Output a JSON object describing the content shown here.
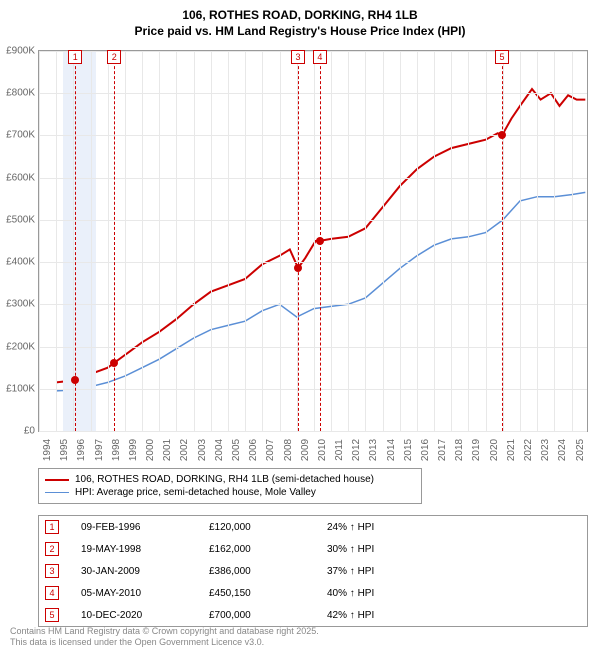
{
  "title_line1": "106, ROTHES ROAD, DORKING, RH4 1LB",
  "title_line2": "Price paid vs. HM Land Registry's House Price Index (HPI)",
  "chart": {
    "type": "line",
    "background_color": "#ffffff",
    "grid_color": "#e8e8e8",
    "border_color": "#999999",
    "x_axis": {
      "min": 1994,
      "max": 2025.9,
      "ticks": [
        1994,
        1995,
        1996,
        1997,
        1998,
        1999,
        2000,
        2001,
        2002,
        2003,
        2004,
        2005,
        2006,
        2007,
        2008,
        2009,
        2010,
        2011,
        2012,
        2013,
        2014,
        2015,
        2016,
        2017,
        2018,
        2019,
        2020,
        2021,
        2022,
        2023,
        2024,
        2025
      ],
      "label_fontsize": 10,
      "label_rotation": -90
    },
    "y_axis": {
      "min": 0,
      "max": 900000,
      "ticks": [
        0,
        100000,
        200000,
        300000,
        400000,
        500000,
        600000,
        700000,
        800000,
        900000
      ],
      "tick_labels": [
        "£0",
        "£100K",
        "£200K",
        "£300K",
        "£400K",
        "£500K",
        "£600K",
        "£700K",
        "£800K",
        "£900K"
      ],
      "label_fontsize": 10
    },
    "recession_bands": [
      {
        "start": 1995.4,
        "end": 1997.3,
        "color": "#eaf0fa"
      }
    ],
    "series": [
      {
        "name": "price_paid",
        "label": "106, ROTHES ROAD, DORKING, RH4 1LB (semi-detached house)",
        "color": "#cc0000",
        "line_width": 2,
        "points": [
          [
            1995.0,
            115000
          ],
          [
            1996.1,
            120000
          ],
          [
            1997.0,
            135000
          ],
          [
            1998.0,
            150000
          ],
          [
            1998.4,
            162000
          ],
          [
            1999.0,
            180000
          ],
          [
            2000.0,
            210000
          ],
          [
            2001.0,
            235000
          ],
          [
            2002.0,
            265000
          ],
          [
            2003.0,
            300000
          ],
          [
            2004.0,
            330000
          ],
          [
            2005.0,
            345000
          ],
          [
            2006.0,
            360000
          ],
          [
            2007.0,
            395000
          ],
          [
            2008.0,
            415000
          ],
          [
            2008.6,
            430000
          ],
          [
            2009.08,
            386000
          ],
          [
            2009.5,
            410000
          ],
          [
            2010.1,
            450000
          ],
          [
            2010.35,
            450150
          ],
          [
            2011.0,
            455000
          ],
          [
            2012.0,
            460000
          ],
          [
            2013.0,
            480000
          ],
          [
            2014.0,
            530000
          ],
          [
            2015.0,
            580000
          ],
          [
            2016.0,
            620000
          ],
          [
            2017.0,
            650000
          ],
          [
            2018.0,
            670000
          ],
          [
            2019.0,
            680000
          ],
          [
            2020.0,
            690000
          ],
          [
            2020.7,
            705000
          ],
          [
            2020.95,
            700000
          ],
          [
            2021.5,
            740000
          ],
          [
            2022.0,
            770000
          ],
          [
            2022.7,
            810000
          ],
          [
            2023.2,
            785000
          ],
          [
            2023.8,
            800000
          ],
          [
            2024.3,
            770000
          ],
          [
            2024.8,
            795000
          ],
          [
            2025.3,
            785000
          ],
          [
            2025.8,
            785000
          ]
        ]
      },
      {
        "name": "hpi",
        "label": "HPI: Average price, semi-detached house, Mole Valley",
        "color": "#5b8fd6",
        "line_width": 1.5,
        "points": [
          [
            1995.0,
            95000
          ],
          [
            1996.0,
            97000
          ],
          [
            1997.0,
            105000
          ],
          [
            1998.0,
            115000
          ],
          [
            1999.0,
            130000
          ],
          [
            2000.0,
            150000
          ],
          [
            2001.0,
            170000
          ],
          [
            2002.0,
            195000
          ],
          [
            2003.0,
            220000
          ],
          [
            2004.0,
            240000
          ],
          [
            2005.0,
            250000
          ],
          [
            2006.0,
            260000
          ],
          [
            2007.0,
            285000
          ],
          [
            2008.0,
            300000
          ],
          [
            2009.0,
            270000
          ],
          [
            2010.0,
            290000
          ],
          [
            2011.0,
            295000
          ],
          [
            2012.0,
            300000
          ],
          [
            2013.0,
            315000
          ],
          [
            2014.0,
            350000
          ],
          [
            2015.0,
            385000
          ],
          [
            2016.0,
            415000
          ],
          [
            2017.0,
            440000
          ],
          [
            2018.0,
            455000
          ],
          [
            2019.0,
            460000
          ],
          [
            2020.0,
            470000
          ],
          [
            2021.0,
            500000
          ],
          [
            2022.0,
            545000
          ],
          [
            2023.0,
            555000
          ],
          [
            2024.0,
            555000
          ],
          [
            2025.0,
            560000
          ],
          [
            2025.8,
            565000
          ]
        ]
      }
    ],
    "sale_markers": [
      {
        "num": 1,
        "year": 1996.11,
        "price": 120000
      },
      {
        "num": 2,
        "year": 1998.38,
        "price": 162000
      },
      {
        "num": 3,
        "year": 2009.08,
        "price": 386000
      },
      {
        "num": 4,
        "year": 2010.35,
        "price": 450150
      },
      {
        "num": 5,
        "year": 2020.95,
        "price": 700000
      }
    ],
    "marker_box_color": "#cc0000",
    "marker_line_color": "#cc0000"
  },
  "legend": {
    "items": [
      {
        "color": "#cc0000",
        "width": 2,
        "label": "106, ROTHES ROAD, DORKING, RH4 1LB (semi-detached house)"
      },
      {
        "color": "#5b8fd6",
        "width": 1.5,
        "label": "HPI: Average price, semi-detached house, Mole Valley"
      }
    ]
  },
  "sales_table": {
    "rows": [
      {
        "num": "1",
        "date": "09-FEB-1996",
        "price": "£120,000",
        "pct": "24% ↑ HPI"
      },
      {
        "num": "2",
        "date": "19-MAY-1998",
        "price": "£162,000",
        "pct": "30% ↑ HPI"
      },
      {
        "num": "3",
        "date": "30-JAN-2009",
        "price": "£386,000",
        "pct": "37% ↑ HPI"
      },
      {
        "num": "4",
        "date": "05-MAY-2010",
        "price": "£450,150",
        "pct": "40% ↑ HPI"
      },
      {
        "num": "5",
        "date": "10-DEC-2020",
        "price": "£700,000",
        "pct": "42% ↑ HPI"
      }
    ]
  },
  "footer_line1": "Contains HM Land Registry data © Crown copyright and database right 2025.",
  "footer_line2": "This data is licensed under the Open Government Licence v3.0."
}
